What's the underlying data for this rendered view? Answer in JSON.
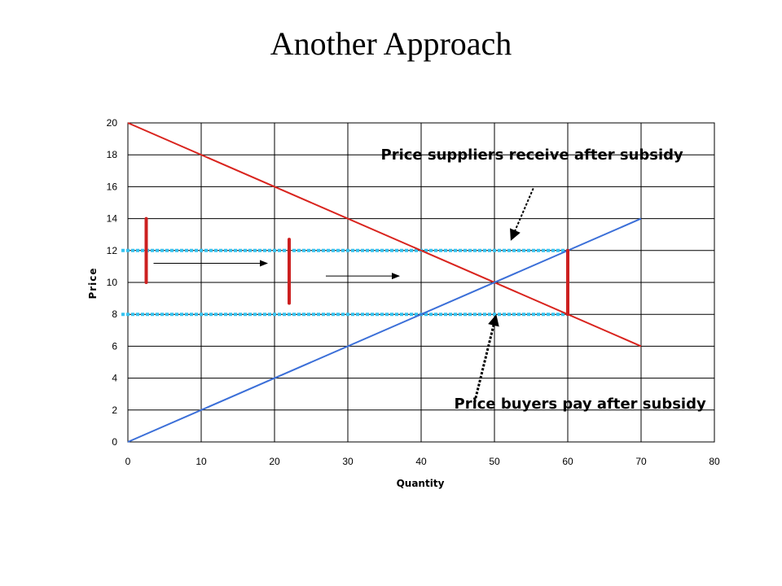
{
  "slide": {
    "title": "Another Approach"
  },
  "chart_data": {
    "type": "line",
    "title": "",
    "xlabel": "Quantity",
    "ylabel": "Price",
    "xlim": [
      0,
      80
    ],
    "ylim": [
      0,
      20
    ],
    "x_ticks": [
      0,
      10,
      20,
      30,
      40,
      50,
      60,
      70,
      80
    ],
    "y_ticks": [
      0,
      2,
      4,
      6,
      8,
      10,
      12,
      14,
      16,
      18,
      20
    ],
    "grid": true,
    "series": [
      {
        "x": [
          0,
          70
        ],
        "y": [
          20,
          6
        ],
        "color": "#d9241e"
      },
      {
        "x": [
          0,
          70
        ],
        "y": [
          0,
          14
        ],
        "color": "#3b6fd8"
      }
    ],
    "price_lines": [
      {
        "y": 12,
        "x": [
          0,
          60
        ],
        "color": "#37c3f0"
      },
      {
        "y": 8,
        "x": [
          0,
          60
        ],
        "color": "#37c3f0"
      }
    ],
    "shift_bars": [
      {
        "x": 2.5,
        "y": [
          10,
          14
        ]
      },
      {
        "x": 22,
        "y": [
          8.7,
          12.7
        ]
      },
      {
        "x": 60,
        "y": [
          8,
          12
        ]
      }
    ],
    "shift_arrows": [
      {
        "x": [
          3.5,
          19
        ],
        "y": 11.2
      },
      {
        "x": 27,
        "y": 10.4,
        "x2": 37
      }
    ],
    "annotations": [
      {
        "text": "Price suppliers receive after subsidy",
        "x": 34.5,
        "y": 17.7,
        "arrow_from": [
          55.3,
          15.9
        ],
        "arrow_to": [
          52.3,
          12.7
        ]
      },
      {
        "text": "Price buyers pay after subsidy",
        "x": 44.5,
        "y": 2.1,
        "arrow_from": [
          47.3,
          2.5
        ],
        "arrow_to": [
          50.2,
          7.9
        ]
      }
    ],
    "colors": {
      "demand": "#d9241e",
      "supply": "#3b6fd8",
      "price_line": "#37c3f0",
      "bar": "#cc2020"
    }
  }
}
